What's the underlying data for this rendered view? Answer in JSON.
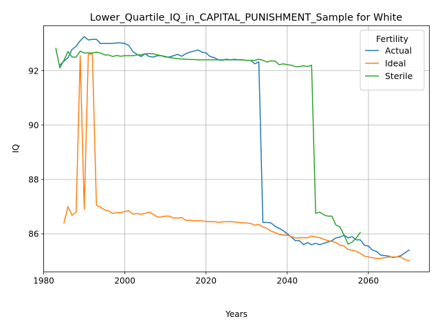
{
  "chart_data": {
    "type": "line",
    "title": "Lower_Quartile_IQ_in_CAPITAL_PUNISHMENT_Sample for White",
    "xlabel": "Years",
    "ylabel": "IQ",
    "xlim": [
      1980,
      2075
    ],
    "ylim": [
      84.6,
      93.65
    ],
    "xticks": [
      1980,
      2000,
      2020,
      2040,
      2060
    ],
    "yticks": [
      86,
      88,
      90,
      92
    ],
    "grid": true,
    "legend": {
      "title": "Fertility",
      "placement": "top-right"
    },
    "colors": {
      "Actual": "#1f77b4",
      "Ideal": "#ff7f0e",
      "Sterile": "#2ca02c"
    },
    "series": [
      {
        "name": "Actual",
        "x": [
          1984,
          1985,
          1986,
          1987,
          1988,
          1989,
          1990,
          1991,
          1992,
          1993,
          1994,
          1995,
          1996,
          1997,
          1998,
          1999,
          2000,
          2001,
          2002,
          2003,
          2004,
          2005,
          2006,
          2007,
          2008,
          2009,
          2010,
          2011,
          2012,
          2013,
          2014,
          2015,
          2016,
          2017,
          2018,
          2019,
          2020,
          2021,
          2022,
          2023,
          2024,
          2025,
          2026,
          2027,
          2028,
          2029,
          2030,
          2031,
          2032,
          2033,
          2034,
          2035,
          2036,
          2037,
          2038,
          2039,
          2040,
          2041,
          2042,
          2043,
          2044,
          2045,
          2046,
          2047,
          2048,
          2049,
          2050,
          2051,
          2052,
          2053,
          2054,
          2055,
          2056,
          2057,
          2058,
          2059,
          2060,
          2061,
          2062,
          2063,
          2064,
          2065,
          2066,
          2067,
          2068,
          2069,
          2070
        ],
        "y": [
          92.2,
          92.35,
          92.48,
          92.78,
          92.9,
          93.1,
          93.25,
          93.13,
          93.15,
          93.15,
          93.0,
          93.0,
          93.0,
          93.0,
          93.02,
          93.02,
          93.0,
          92.92,
          92.7,
          92.6,
          92.52,
          92.62,
          92.52,
          92.5,
          92.55,
          92.55,
          92.5,
          92.5,
          92.55,
          92.6,
          92.53,
          92.62,
          92.68,
          92.72,
          92.76,
          92.68,
          92.65,
          92.52,
          92.48,
          92.4,
          92.38,
          92.42,
          92.4,
          92.4,
          92.4,
          92.4,
          92.38,
          92.38,
          92.25,
          92.32,
          86.42,
          86.42,
          86.4,
          86.28,
          86.2,
          86.12,
          86.0,
          85.88,
          85.75,
          85.75,
          85.6,
          85.68,
          85.6,
          85.65,
          85.6,
          85.65,
          85.7,
          85.75,
          85.85,
          85.88,
          85.95,
          85.85,
          85.9,
          85.78,
          85.78,
          85.58,
          85.55,
          85.4,
          85.35,
          85.22,
          85.2,
          85.18,
          85.13,
          85.15,
          85.2,
          85.3,
          85.4
        ]
      },
      {
        "name": "Ideal",
        "x": [
          1985,
          1986,
          1987,
          1988,
          1989,
          1990,
          1991,
          1992,
          1993,
          1994,
          1995,
          1996,
          1997,
          1998,
          1999,
          2000,
          2001,
          2002,
          2003,
          2004,
          2005,
          2006,
          2007,
          2008,
          2009,
          2010,
          2011,
          2012,
          2013,
          2014,
          2015,
          2016,
          2017,
          2018,
          2019,
          2020,
          2021,
          2022,
          2023,
          2024,
          2025,
          2026,
          2027,
          2028,
          2029,
          2030,
          2031,
          2032,
          2033,
          2034,
          2035,
          2036,
          2037,
          2038,
          2039,
          2040,
          2041,
          2042,
          2043,
          2044,
          2045,
          2046,
          2047,
          2048,
          2049,
          2050,
          2051,
          2052,
          2053,
          2054,
          2055,
          2056,
          2057,
          2058,
          2059,
          2060,
          2061,
          2062,
          2063,
          2064,
          2065,
          2066,
          2067,
          2068,
          2069,
          2070
        ],
        "y": [
          86.4,
          87.0,
          86.68,
          86.8,
          92.55,
          86.9,
          92.6,
          92.62,
          87.05,
          86.98,
          86.88,
          86.85,
          86.75,
          86.78,
          86.78,
          86.82,
          86.85,
          86.72,
          86.75,
          86.72,
          86.75,
          86.8,
          86.72,
          86.62,
          86.62,
          86.65,
          86.65,
          86.58,
          86.58,
          86.6,
          86.5,
          86.5,
          86.48,
          86.48,
          86.48,
          86.45,
          86.45,
          86.45,
          86.42,
          86.44,
          86.45,
          86.45,
          86.44,
          86.42,
          86.4,
          86.4,
          86.38,
          86.32,
          86.35,
          86.25,
          86.2,
          86.1,
          86.05,
          85.98,
          85.95,
          85.95,
          85.9,
          85.85,
          85.85,
          85.86,
          85.85,
          85.92,
          85.88,
          85.86,
          85.8,
          85.75,
          85.72,
          85.68,
          85.58,
          85.55,
          85.42,
          85.4,
          85.36,
          85.28,
          85.18,
          85.15,
          85.12,
          85.1,
          85.1,
          85.12,
          85.15,
          85.15,
          85.15,
          85.15,
          85.05,
          85.02
        ]
      },
      {
        "name": "Sterile",
        "x": [
          1983,
          1984,
          1985,
          1986,
          1987,
          1988,
          1989,
          1990,
          1991,
          1992,
          1993,
          1994,
          1995,
          1996,
          1997,
          1998,
          1999,
          2000,
          2001,
          2002,
          2003,
          2004,
          2005,
          2006,
          2007,
          2008,
          2009,
          2010,
          2011,
          2012,
          2013,
          2014,
          2015,
          2016,
          2017,
          2018,
          2019,
          2020,
          2021,
          2022,
          2023,
          2024,
          2025,
          2026,
          2027,
          2028,
          2029,
          2030,
          2031,
          2032,
          2033,
          2034,
          2035,
          2036,
          2037,
          2038,
          2039,
          2040,
          2041,
          2042,
          2043,
          2044,
          2045,
          2046,
          2047,
          2048,
          2049,
          2050,
          2051,
          2052,
          2053,
          2054,
          2055,
          2056,
          2057,
          2058
        ],
        "y": [
          92.82,
          92.1,
          92.38,
          92.7,
          92.5,
          92.5,
          92.72,
          92.65,
          92.65,
          92.65,
          92.68,
          92.65,
          92.58,
          92.58,
          92.52,
          92.56,
          92.53,
          92.55,
          92.55,
          92.55,
          92.58,
          92.58,
          92.62,
          92.63,
          92.62,
          92.58,
          92.55,
          92.52,
          92.48,
          92.46,
          92.44,
          92.43,
          92.42,
          92.41,
          92.41,
          92.4,
          92.4,
          92.4,
          92.4,
          92.4,
          92.4,
          92.4,
          92.4,
          92.4,
          92.42,
          92.4,
          92.4,
          92.38,
          92.38,
          92.38,
          92.42,
          92.38,
          92.32,
          92.36,
          92.35,
          92.22,
          92.25,
          92.22,
          92.2,
          92.15,
          92.15,
          92.18,
          92.15,
          92.2,
          86.75,
          86.8,
          86.7,
          86.65,
          86.65,
          86.32,
          86.25,
          85.95,
          85.62,
          85.7,
          85.85,
          86.05
        ]
      }
    ]
  }
}
